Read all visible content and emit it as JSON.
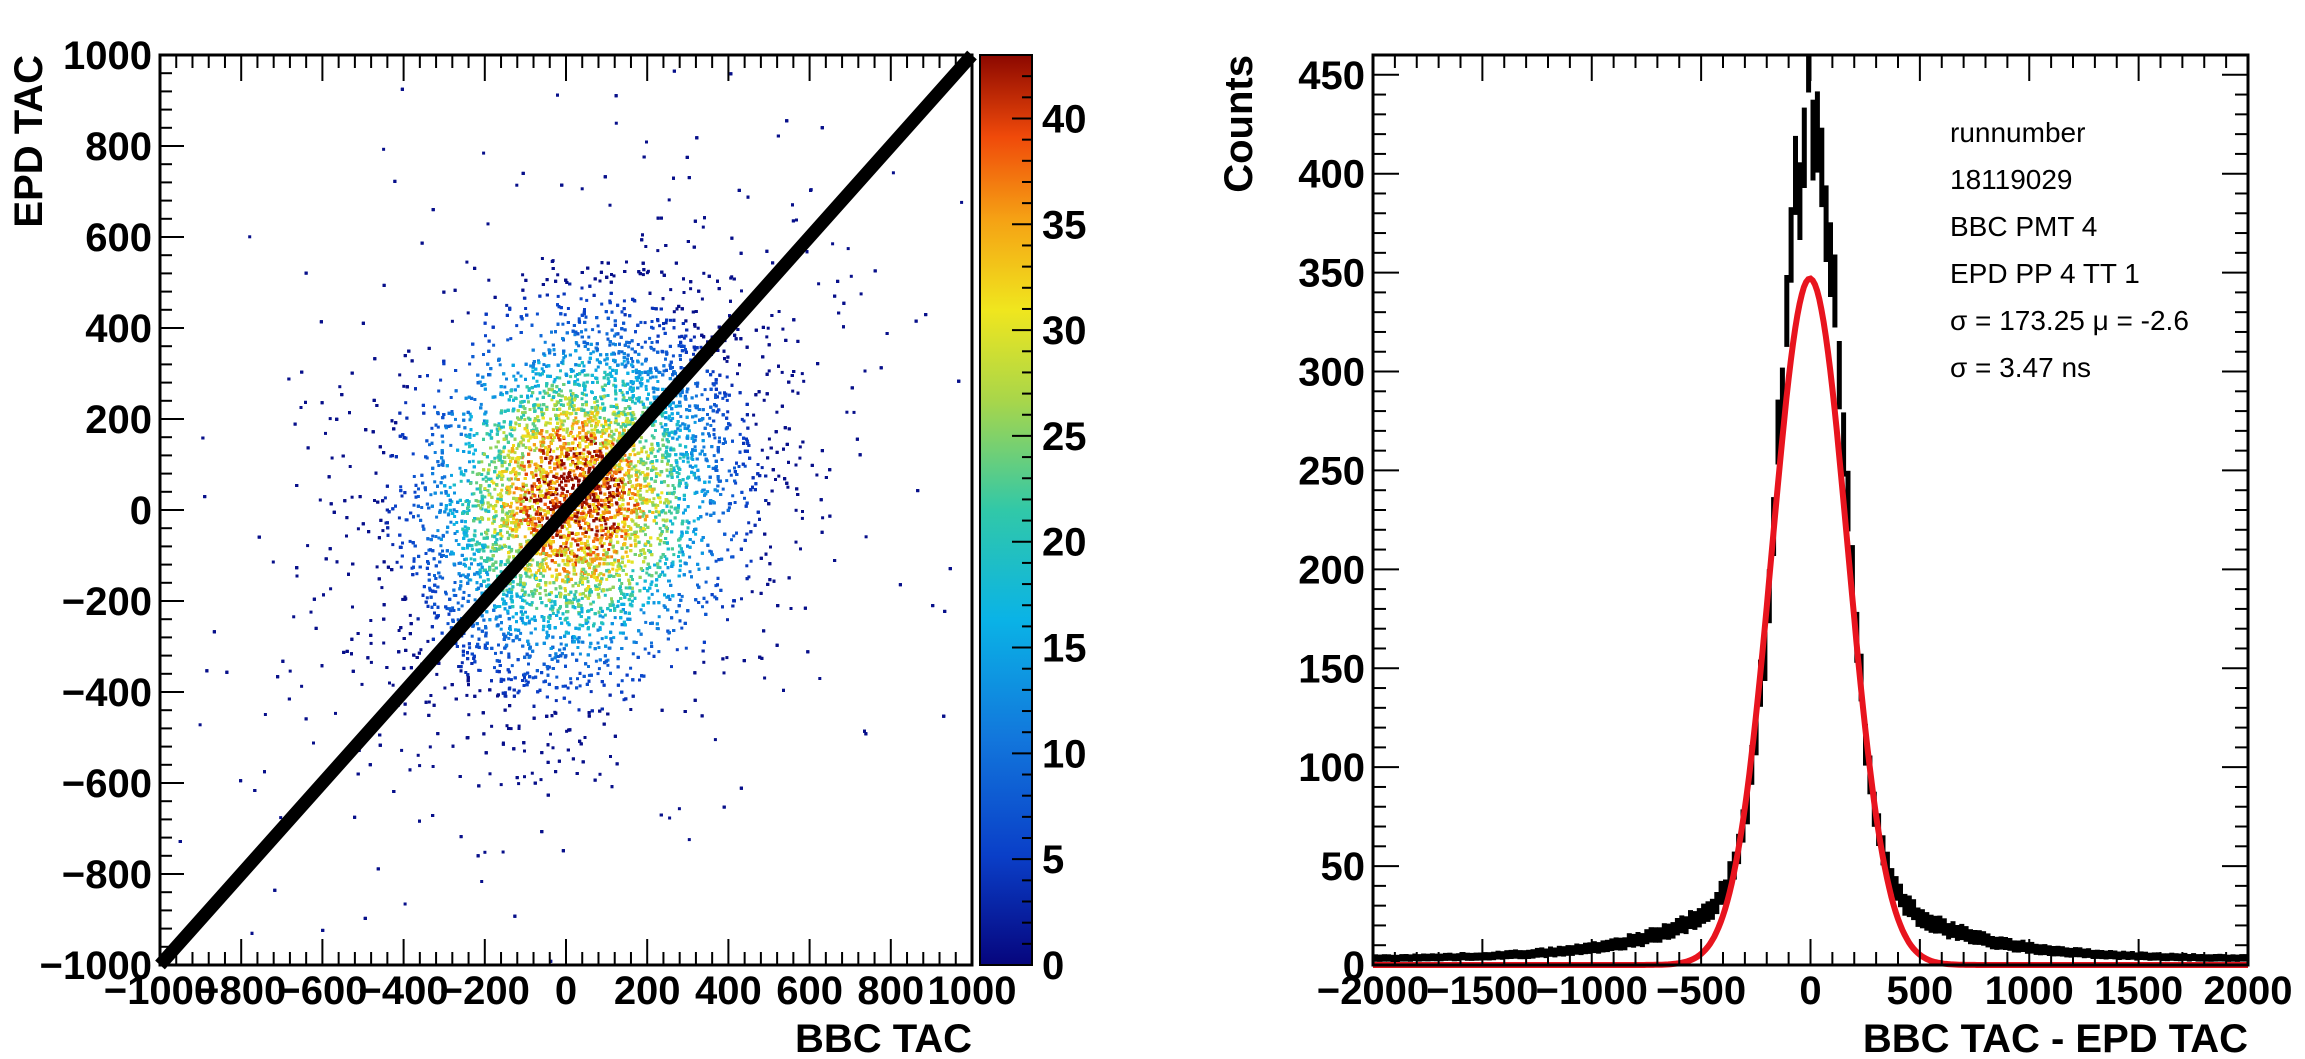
{
  "chart_data": [
    {
      "type": "heatmap",
      "xlabel": "BBC TAC",
      "ylabel": "EPD TAC",
      "xlim": [
        -1000,
        1000
      ],
      "ylim": [
        -1000,
        1000
      ],
      "x_ticks": [
        -1000,
        -800,
        -600,
        -400,
        -200,
        0,
        200,
        400,
        600,
        800,
        1000
      ],
      "y_ticks": [
        -1000,
        -800,
        -600,
        -400,
        -200,
        0,
        200,
        400,
        600,
        800,
        1000
      ],
      "colorbar": {
        "range": [
          0,
          43
        ],
        "ticks": [
          0,
          5,
          10,
          15,
          20,
          25,
          30,
          35,
          40
        ],
        "colormap": "kBird"
      },
      "distribution": {
        "center": [
          20,
          30
        ],
        "sigma": [
          200,
          200
        ],
        "correlation": 0.3,
        "peak_count": 43
      },
      "reference_line": {
        "from": [
          -1000,
          -1000
        ],
        "to": [
          1000,
          1000
        ]
      },
      "colors": {
        "line": "#000000"
      }
    },
    {
      "type": "histogram",
      "xlabel": "BBC TAC - EPD TAC",
      "ylabel": "Counts",
      "xlim": [
        -2000,
        2000
      ],
      "ylim": [
        0,
        460
      ],
      "x_ticks": [
        -2000,
        -1500,
        -1000,
        -500,
        0,
        500,
        1000,
        1500,
        2000
      ],
      "y_ticks": [
        0,
        50,
        100,
        150,
        200,
        250,
        300,
        350,
        400,
        450
      ],
      "histogram": {
        "peak_x": 0,
        "peak_counts": 437,
        "shape_sigma": 140,
        "tail_width": 380,
        "tail_fraction": 0.18,
        "baseline": 3,
        "bin_width": 20
      },
      "fit": {
        "type": "gaussian",
        "amplitude": 347,
        "mean": -2.6,
        "sigma": 173.25
      },
      "stats_box": {
        "lines": [
          "runnumber",
          "18119029",
          "BBC PMT 4",
          "EPD PP 4 TT 1",
          "σ = 173.25 μ = -2.6",
          "σ = 3.47 ns"
        ]
      },
      "colors": {
        "histogram": "#000000",
        "fit": "#e8141e"
      }
    }
  ]
}
